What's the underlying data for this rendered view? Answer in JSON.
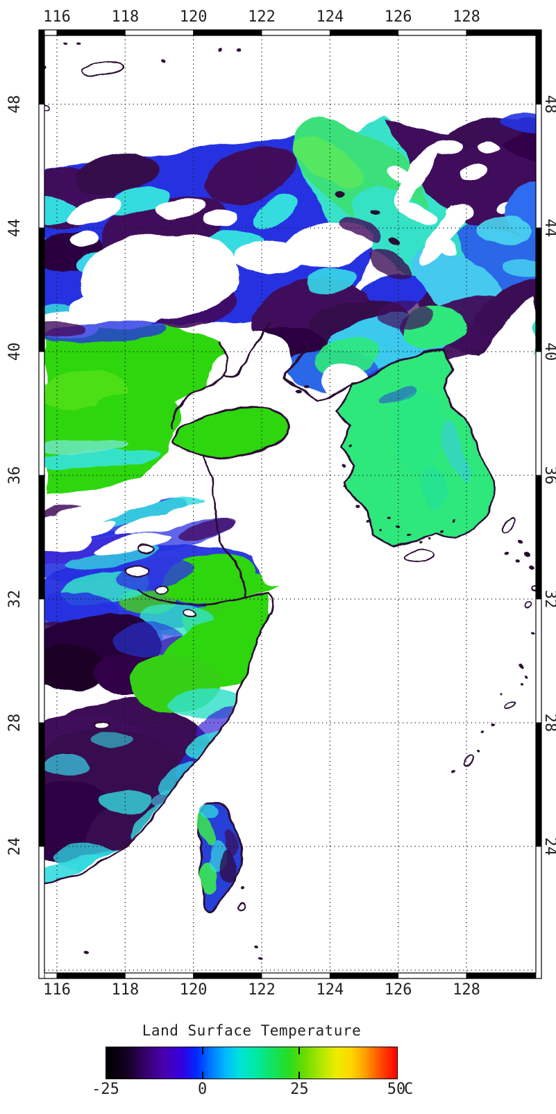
{
  "figure": {
    "description": "Satellite land surface temperature swath map of eastern China, the Korean peninsula, Taiwan and surrounding seas; white areas are ocean or missing data",
    "background": "#ffffff"
  },
  "axes": {
    "lon_tick_labels": [
      "116",
      "118",
      "120",
      "122",
      "124",
      "126",
      "128"
    ],
    "lat_tick_labels": [
      "48",
      "44",
      "40",
      "36",
      "32",
      "28",
      "24"
    ]
  },
  "colorbar": {
    "title": "Land Surface Temperature",
    "unit": "C",
    "min": -25,
    "max": 50,
    "tick_labels": [
      "-25",
      "0",
      "25",
      "50"
    ],
    "tick_values": [
      -25,
      0,
      25,
      50
    ],
    "inner_tick_values": [
      0,
      25
    ],
    "gradient_stops": [
      [
        0,
        "#000000"
      ],
      [
        7,
        "#140020"
      ],
      [
        14,
        "#380072"
      ],
      [
        20,
        "#4800b0"
      ],
      [
        26,
        "#3400e0"
      ],
      [
        31,
        "#0028ff"
      ],
      [
        36,
        "#0078ff"
      ],
      [
        41,
        "#00b8ff"
      ],
      [
        46,
        "#00e4d8"
      ],
      [
        51,
        "#00e8a8"
      ],
      [
        57,
        "#10e464"
      ],
      [
        63,
        "#28dc20"
      ],
      [
        68,
        "#68dc00"
      ],
      [
        74,
        "#b0e800"
      ],
      [
        79,
        "#ecec00"
      ],
      [
        84,
        "#ffd800"
      ],
      [
        89,
        "#ffa000"
      ],
      [
        94,
        "#ff5000"
      ],
      [
        100,
        "#fe0000"
      ]
    ]
  },
  "chart_data": {
    "type": "heatmap",
    "title": "Land Surface Temperature",
    "value_range_c": [
      -25,
      50
    ],
    "lon_gridlines": [
      116,
      118,
      120,
      122,
      124,
      126,
      128
    ],
    "lat_gridlines": [
      48,
      44,
      40,
      36,
      32,
      28,
      24,
      20
    ],
    "map_extent": {
      "lon_min": 115.7,
      "lon_max": 130.1,
      "lat_min": 19.9,
      "lat_max": 50.2
    },
    "grid_style": "dotted",
    "legend_position": "bottom"
  },
  "palette": {
    "no_data_ocean": "#ffffff",
    "coastline": "#2b0733",
    "cold_near_black": "#1c0328",
    "dark_purple": "#380850",
    "purple": "#410a5c",
    "indigo_blue": "#2633e2",
    "royal_blue": "#2a68e8",
    "taiwan_blue": "#2840d8",
    "sky_cyan": "#45c9ef",
    "cyan": "#35dcdf",
    "teal": "#35e2c8",
    "korea_green": "#2ee87c",
    "plain_green": "#2fd60e",
    "gridline": "#111111",
    "frame": "#000000",
    "label_text": "#222222"
  }
}
